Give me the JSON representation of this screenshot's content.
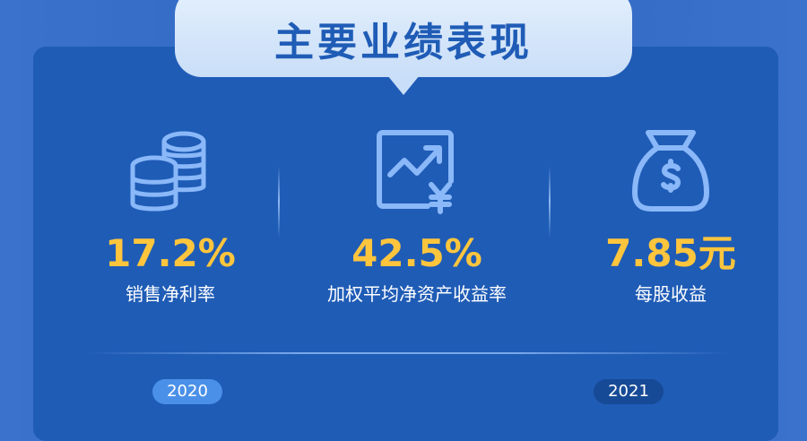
{
  "title": "主要业绩表现",
  "metrics": [
    {
      "value": "17.2%",
      "label": "销售净利率",
      "icon": "coins-stack-icon"
    },
    {
      "value": "42.5%",
      "label": "加权平均净资产收益率",
      "icon": "chart-yen-icon"
    },
    {
      "value": "7.85元",
      "label": "每股收益",
      "icon": "money-bag-icon"
    }
  ],
  "years": [
    {
      "label": "2020",
      "state": "active"
    },
    {
      "label": "2021",
      "state": "inactive"
    }
  ],
  "colors": {
    "panel": "#1f5cb6",
    "accent": "#ffc53d",
    "icon": "#8ab8f8",
    "active_year": "#4a90e8",
    "inactive_year": "#174a96"
  }
}
